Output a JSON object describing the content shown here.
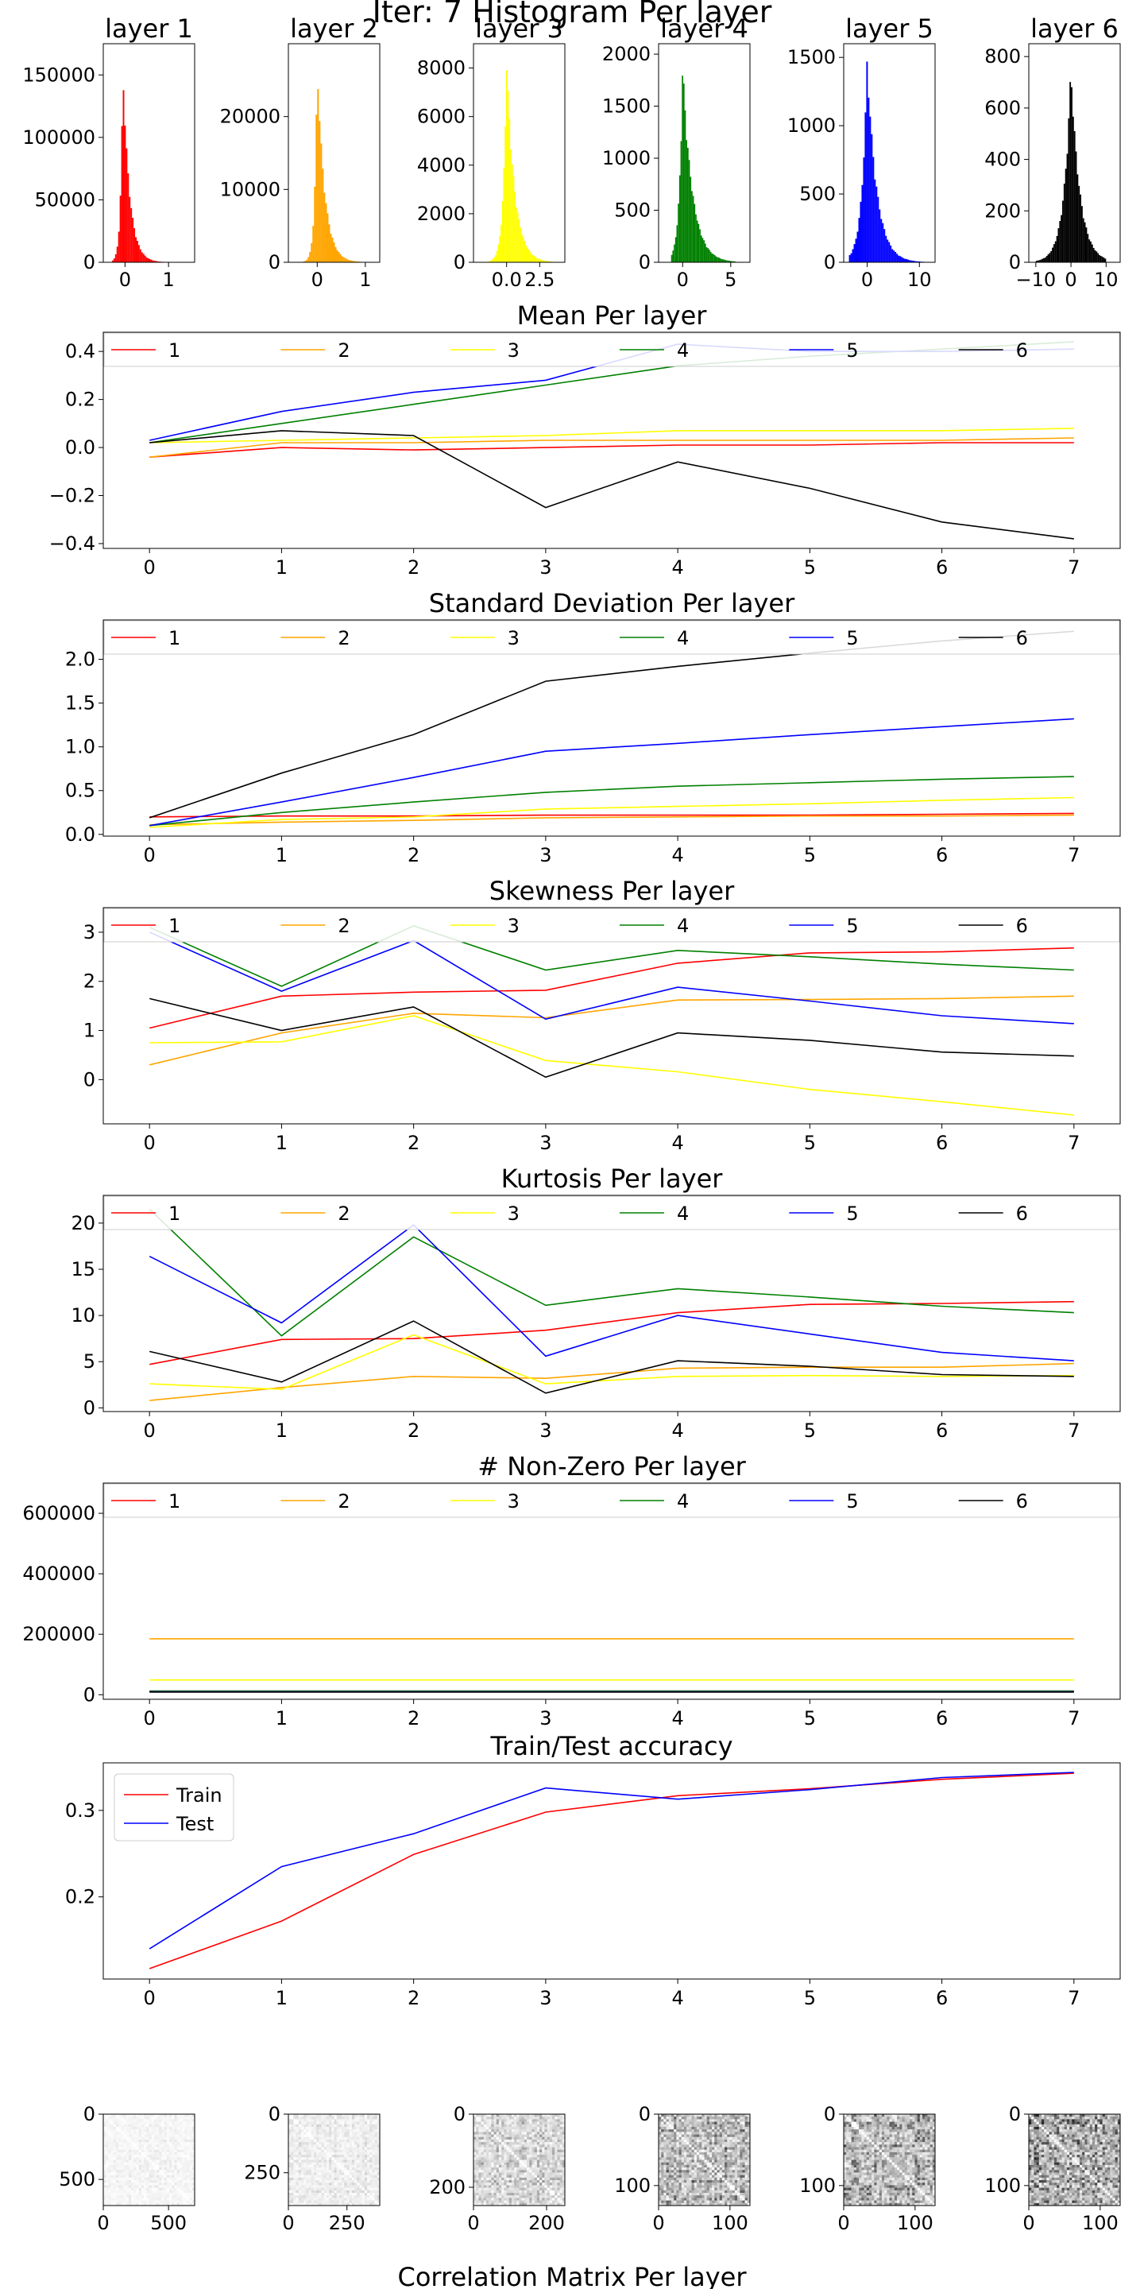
{
  "figure_title": "Iter: 7 Histogram Per layer",
  "footer_title": "Correlation Matrix Per layer",
  "colors": {
    "series": [
      "#ff0000",
      "#ffa500",
      "#ffff00",
      "#008000",
      "#0000ff",
      "#000000"
    ],
    "train": "#ff0000",
    "test": "#0000ff",
    "axes": "#000000",
    "legend_edge": "#cccccc"
  },
  "chart_data": [
    {
      "type": "bar",
      "title": "layer 1",
      "color": "#ff0000",
      "xlim": [
        -0.5,
        1.6
      ],
      "ylim": [
        0,
        175000
      ],
      "xticks": [
        0,
        1
      ],
      "xtick_labels": [
        "0",
        "1"
      ],
      "yticks": [
        0,
        50000,
        100000,
        150000
      ],
      "ytick_labels": [
        "0",
        "50000",
        "100000",
        "150000"
      ],
      "shape": {
        "peak": 163000,
        "mode": -0.05,
        "sigma_left": 0.05,
        "sigma_right": 0.15,
        "xmin": -0.3,
        "xmax": 1.4
      }
    },
    {
      "type": "bar",
      "title": "layer 2",
      "color": "#ffa500",
      "xlim": [
        -0.6,
        1.3
      ],
      "ylim": [
        0,
        30000
      ],
      "xticks": [
        0,
        1
      ],
      "xtick_labels": [
        "0",
        "1"
      ],
      "yticks": [
        0,
        10000,
        20000
      ],
      "ytick_labels": [
        "0",
        "10000",
        "20000"
      ],
      "shape": {
        "peak": 28500,
        "mode": 0.0,
        "sigma_left": 0.05,
        "sigma_right": 0.15,
        "xmin": -0.4,
        "xmax": 1.2
      }
    },
    {
      "type": "bar",
      "title": "layer 3",
      "color": "#ffff00",
      "xlim": [
        -2.5,
        4.4
      ],
      "ylim": [
        0,
        9000
      ],
      "xticks": [
        0,
        2.5
      ],
      "xtick_labels": [
        "0.0",
        "2.5"
      ],
      "yticks": [
        0,
        2000,
        4000,
        6000,
        8000
      ],
      "ytick_labels": [
        "0",
        "2000",
        "4000",
        "6000",
        "8000"
      ],
      "shape": {
        "peak": 8600,
        "mode": 0.0,
        "sigma_left": 0.25,
        "sigma_right": 0.6,
        "xmin": -1.5,
        "xmax": 3.5
      }
    },
    {
      "type": "bar",
      "title": "layer 4",
      "color": "#008000",
      "xlim": [
        -2.5,
        7
      ],
      "ylim": [
        0,
        2100
      ],
      "xticks": [
        0,
        5
      ],
      "xtick_labels": [
        "0",
        "5"
      ],
      "yticks": [
        0,
        500,
        1000,
        1500,
        2000
      ],
      "ytick_labels": [
        "0",
        "500",
        "1000",
        "1500",
        "2000"
      ],
      "shape": {
        "peak": 1950,
        "mode": 0.0,
        "sigma_left": 0.35,
        "sigma_right": 1.0,
        "xmin": -1.2,
        "xmax": 5.5
      }
    },
    {
      "type": "bar",
      "title": "layer 5",
      "color": "#0000ff",
      "xlim": [
        -4.5,
        13
      ],
      "ylim": [
        0,
        1600
      ],
      "xticks": [
        0,
        10
      ],
      "xtick_labels": [
        "0",
        "10"
      ],
      "yticks": [
        0,
        500,
        1000,
        1500
      ],
      "ytick_labels": [
        "0",
        "500",
        "1000",
        "1500"
      ],
      "shape": {
        "peak": 1530,
        "mode": 0.0,
        "sigma_left": 1.0,
        "sigma_right": 1.8,
        "xmin": -3.5,
        "xmax": 11
      }
    },
    {
      "type": "bar",
      "title": "layer 6",
      "color": "#000000",
      "xlim": [
        -12,
        14
      ],
      "ylim": [
        0,
        850
      ],
      "xticks": [
        -10,
        0,
        10
      ],
      "xtick_labels": [
        "−10",
        "0",
        "10"
      ],
      "yticks": [
        0,
        200,
        400,
        600,
        800
      ],
      "ytick_labels": [
        "0",
        "200",
        "400",
        "600",
        "800"
      ],
      "shape": {
        "peak": 780,
        "mode": 0.0,
        "sigma_left": 2.0,
        "sigma_right": 2.5,
        "xmin": -10,
        "xmax": 10
      }
    },
    {
      "type": "line",
      "title": "Mean Per layer",
      "xlim": [
        -0.35,
        7.35
      ],
      "ylim": [
        -0.42,
        0.48
      ],
      "x": [
        0,
        1,
        2,
        3,
        4,
        5,
        6,
        7
      ],
      "xticks": [
        0,
        1,
        2,
        3,
        4,
        5,
        6,
        7
      ],
      "xtick_labels": [
        "0",
        "1",
        "2",
        "3",
        "4",
        "5",
        "6",
        "7"
      ],
      "yticks": [
        -0.4,
        -0.2,
        0.0,
        0.2,
        0.4
      ],
      "ytick_labels": [
        "−0.4",
        "−0.2",
        "0.0",
        "0.2",
        "0.4"
      ],
      "legend": "top-row",
      "series": [
        {
          "name": "1",
          "color": "#ff0000",
          "values": [
            -0.04,
            0.0,
            -0.01,
            0.0,
            0.01,
            0.01,
            0.02,
            0.02
          ]
        },
        {
          "name": "2",
          "color": "#ffa500",
          "values": [
            -0.04,
            0.02,
            0.02,
            0.03,
            0.03,
            0.03,
            0.03,
            0.04
          ]
        },
        {
          "name": "3",
          "color": "#ffff00",
          "values": [
            0.02,
            0.03,
            0.04,
            0.05,
            0.07,
            0.07,
            0.07,
            0.08
          ]
        },
        {
          "name": "4",
          "color": "#008000",
          "values": [
            0.02,
            0.1,
            0.18,
            0.26,
            0.34,
            0.38,
            0.41,
            0.44
          ]
        },
        {
          "name": "5",
          "color": "#0000ff",
          "values": [
            0.03,
            0.15,
            0.23,
            0.28,
            0.43,
            0.4,
            0.4,
            0.41
          ]
        },
        {
          "name": "6",
          "color": "#000000",
          "values": [
            0.02,
            0.07,
            0.05,
            -0.25,
            -0.06,
            -0.17,
            -0.31,
            -0.38
          ]
        }
      ]
    },
    {
      "type": "line",
      "title": "Standard Deviation Per layer",
      "xlim": [
        -0.35,
        7.35
      ],
      "ylim": [
        -0.02,
        2.45
      ],
      "x": [
        0,
        1,
        2,
        3,
        4,
        5,
        6,
        7
      ],
      "xticks": [
        0,
        1,
        2,
        3,
        4,
        5,
        6,
        7
      ],
      "xtick_labels": [
        "0",
        "1",
        "2",
        "3",
        "4",
        "5",
        "6",
        "7"
      ],
      "yticks": [
        0.0,
        0.5,
        1.0,
        1.5,
        2.0
      ],
      "ytick_labels": [
        "0.0",
        "0.5",
        "1.0",
        "1.5",
        "2.0"
      ],
      "legend": "top-row",
      "series": [
        {
          "name": "1",
          "color": "#ff0000",
          "values": [
            0.2,
            0.21,
            0.21,
            0.22,
            0.22,
            0.22,
            0.23,
            0.24
          ]
        },
        {
          "name": "2",
          "color": "#ffa500",
          "values": [
            0.11,
            0.14,
            0.16,
            0.19,
            0.2,
            0.21,
            0.21,
            0.22
          ]
        },
        {
          "name": "3",
          "color": "#ffff00",
          "values": [
            0.08,
            0.17,
            0.2,
            0.29,
            0.32,
            0.35,
            0.39,
            0.42
          ]
        },
        {
          "name": "4",
          "color": "#008000",
          "values": [
            0.1,
            0.25,
            0.37,
            0.48,
            0.55,
            0.59,
            0.63,
            0.66
          ]
        },
        {
          "name": "5",
          "color": "#0000ff",
          "values": [
            0.1,
            0.37,
            0.65,
            0.95,
            1.04,
            1.14,
            1.23,
            1.32
          ]
        },
        {
          "name": "6",
          "color": "#000000",
          "values": [
            0.19,
            0.7,
            1.14,
            1.75,
            1.92,
            2.07,
            2.21,
            2.32
          ]
        }
      ]
    },
    {
      "type": "line",
      "title": "Skewness Per layer",
      "xlim": [
        -0.35,
        7.35
      ],
      "ylim": [
        -0.9,
        3.5
      ],
      "x": [
        0,
        1,
        2,
        3,
        4,
        5,
        6,
        7
      ],
      "xticks": [
        0,
        1,
        2,
        3,
        4,
        5,
        6,
        7
      ],
      "xtick_labels": [
        "0",
        "1",
        "2",
        "3",
        "4",
        "5",
        "6",
        "7"
      ],
      "yticks": [
        0,
        1,
        2,
        3
      ],
      "ytick_labels": [
        "0",
        "1",
        "2",
        "3"
      ],
      "legend": "top-row",
      "series": [
        {
          "name": "1",
          "color": "#ff0000",
          "values": [
            1.05,
            1.7,
            1.78,
            1.82,
            2.37,
            2.58,
            2.6,
            2.68
          ]
        },
        {
          "name": "2",
          "color": "#ffa500",
          "values": [
            0.3,
            0.95,
            1.35,
            1.26,
            1.62,
            1.63,
            1.65,
            1.7
          ]
        },
        {
          "name": "3",
          "color": "#ffff00",
          "values": [
            0.75,
            0.77,
            1.3,
            0.39,
            0.16,
            -0.2,
            -0.45,
            -0.72
          ]
        },
        {
          "name": "4",
          "color": "#008000",
          "values": [
            3.1,
            1.9,
            3.13,
            2.23,
            2.63,
            2.5,
            2.35,
            2.23
          ]
        },
        {
          "name": "5",
          "color": "#0000ff",
          "values": [
            3.0,
            1.8,
            2.83,
            1.23,
            1.88,
            1.6,
            1.3,
            1.14
          ]
        },
        {
          "name": "6",
          "color": "#000000",
          "values": [
            1.65,
            1.0,
            1.48,
            0.05,
            0.95,
            0.8,
            0.56,
            0.48
          ]
        }
      ]
    },
    {
      "type": "line",
      "title": "Kurtosis Per layer",
      "xlim": [
        -0.35,
        7.35
      ],
      "ylim": [
        -0.4,
        23
      ],
      "x": [
        0,
        1,
        2,
        3,
        4,
        5,
        6,
        7
      ],
      "xticks": [
        0,
        1,
        2,
        3,
        4,
        5,
        6,
        7
      ],
      "xtick_labels": [
        "0",
        "1",
        "2",
        "3",
        "4",
        "5",
        "6",
        "7"
      ],
      "yticks": [
        0,
        5,
        10,
        15,
        20
      ],
      "ytick_labels": [
        "0",
        "5",
        "10",
        "15",
        "20"
      ],
      "legend": "top-row",
      "series": [
        {
          "name": "1",
          "color": "#ff0000",
          "values": [
            4.7,
            7.4,
            7.5,
            8.4,
            10.3,
            11.2,
            11.3,
            11.5
          ]
        },
        {
          "name": "2",
          "color": "#ffa500",
          "values": [
            0.8,
            2.2,
            3.4,
            3.2,
            4.3,
            4.4,
            4.4,
            4.8
          ]
        },
        {
          "name": "3",
          "color": "#ffff00",
          "values": [
            2.6,
            2.0,
            7.9,
            2.6,
            3.4,
            3.5,
            3.4,
            3.5
          ]
        },
        {
          "name": "4",
          "color": "#008000",
          "values": [
            21.5,
            7.8,
            18.5,
            11.1,
            12.9,
            12.0,
            11.0,
            10.3
          ]
        },
        {
          "name": "5",
          "color": "#0000ff",
          "values": [
            16.4,
            9.2,
            19.8,
            5.6,
            10.0,
            8.0,
            6.0,
            5.1
          ]
        },
        {
          "name": "6",
          "color": "#000000",
          "values": [
            6.1,
            2.8,
            9.4,
            1.6,
            5.1,
            4.5,
            3.6,
            3.4
          ]
        }
      ]
    },
    {
      "type": "line",
      "title": "# Non-Zero Per layer",
      "xlim": [
        -0.35,
        7.35
      ],
      "ylim": [
        -15000,
        700000
      ],
      "x": [
        0,
        1,
        2,
        3,
        4,
        5,
        6,
        7
      ],
      "xticks": [
        0,
        1,
        2,
        3,
        4,
        5,
        6,
        7
      ],
      "xtick_labels": [
        "0",
        "1",
        "2",
        "3",
        "4",
        "5",
        "6",
        "7"
      ],
      "yticks": [
        0,
        200000,
        400000,
        600000
      ],
      "ytick_labels": [
        "0",
        "200000",
        "400000",
        "600000"
      ],
      "legend": "top-row",
      "series": [
        {
          "name": "1",
          "color": "#ff0000",
          "values": [
            12000,
            12000,
            12000,
            12000,
            12000,
            12000,
            12000,
            12000
          ]
        },
        {
          "name": "2",
          "color": "#ffa500",
          "values": [
            185000,
            185000,
            185000,
            185000,
            185000,
            185000,
            185000,
            185000
          ]
        },
        {
          "name": "3",
          "color": "#ffff00",
          "values": [
            49000,
            49000,
            49000,
            49000,
            49000,
            49000,
            49000,
            49000
          ]
        },
        {
          "name": "4",
          "color": "#008000",
          "values": [
            12000,
            12000,
            12000,
            12000,
            12000,
            12000,
            12000,
            12000
          ]
        },
        {
          "name": "5",
          "color": "#0000ff",
          "values": [
            10000,
            10000,
            10000,
            10000,
            10000,
            10000,
            10000,
            10000
          ]
        },
        {
          "name": "6",
          "color": "#000000",
          "values": [
            9000,
            9000,
            9000,
            9000,
            9000,
            9000,
            9000,
            9000
          ]
        }
      ]
    },
    {
      "type": "line",
      "title": "Train/Test accuracy",
      "xlim": [
        -0.35,
        7.35
      ],
      "ylim": [
        0.105,
        0.355
      ],
      "x": [
        0,
        1,
        2,
        3,
        4,
        5,
        6,
        7
      ],
      "xticks": [
        0,
        1,
        2,
        3,
        4,
        5,
        6,
        7
      ],
      "xtick_labels": [
        "0",
        "1",
        "2",
        "3",
        "4",
        "5",
        "6",
        "7"
      ],
      "yticks": [
        0.2,
        0.3
      ],
      "ytick_labels": [
        "0.2",
        "0.3"
      ],
      "legend": "upper-left",
      "series": [
        {
          "name": "Train",
          "color": "#ff0000",
          "values": [
            0.117,
            0.172,
            0.249,
            0.298,
            0.317,
            0.325,
            0.336,
            0.343
          ]
        },
        {
          "name": "Test",
          "color": "#0000ff",
          "values": [
            0.14,
            0.235,
            0.273,
            0.326,
            0.313,
            0.324,
            0.338,
            0.344
          ]
        }
      ]
    },
    {
      "type": "heatmap",
      "size": 700,
      "xticks": [
        0,
        500
      ],
      "xtick_labels": [
        "0",
        "500"
      ],
      "yticks": [
        0,
        500
      ],
      "ytick_labels": [
        "0",
        "500"
      ],
      "contrast": 0.12
    },
    {
      "type": "heatmap",
      "size": 390,
      "xticks": [
        0,
        250
      ],
      "xtick_labels": [
        "0",
        "250"
      ],
      "yticks": [
        0,
        250
      ],
      "ytick_labels": [
        "0",
        "250"
      ],
      "contrast": 0.2
    },
    {
      "type": "heatmap",
      "size": 250,
      "xticks": [
        0,
        200
      ],
      "xtick_labels": [
        "0",
        "200"
      ],
      "yticks": [
        0,
        200
      ],
      "ytick_labels": [
        "0",
        "200"
      ],
      "contrast": 0.45
    },
    {
      "type": "heatmap",
      "size": 128,
      "xticks": [
        0,
        100
      ],
      "xtick_labels": [
        "0",
        "100"
      ],
      "yticks": [
        0,
        100
      ],
      "ytick_labels": [
        "0",
        "100"
      ],
      "contrast": 0.75
    },
    {
      "type": "heatmap",
      "size": 128,
      "xticks": [
        0,
        100
      ],
      "xtick_labels": [
        "0",
        "100"
      ],
      "yticks": [
        0,
        100
      ],
      "ytick_labels": [
        "0",
        "100"
      ],
      "contrast": 0.8
    },
    {
      "type": "heatmap",
      "size": 128,
      "xticks": [
        0,
        100
      ],
      "xtick_labels": [
        "0",
        "100"
      ],
      "yticks": [
        0,
        100
      ],
      "ytick_labels": [
        "0",
        "100"
      ],
      "contrast": 0.95
    }
  ]
}
